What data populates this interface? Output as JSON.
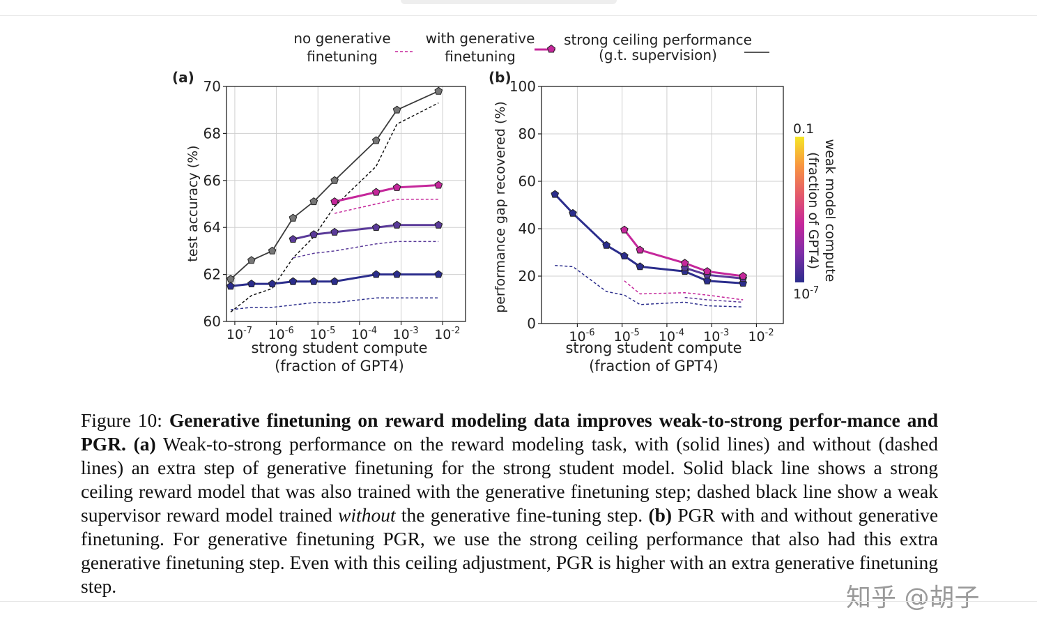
{
  "legend": {
    "no_gen_line1": "no generative",
    "no_gen_line2": "finetuning",
    "with_gen_line1": "with generative",
    "with_gen_line2": "finetuning",
    "ceiling_line1": "strong ceiling performance",
    "ceiling_line2": "(g.t. supervision)"
  },
  "colors": {
    "low": "#2b2d8c",
    "mid": "#5a3a99",
    "high": "#c5279b",
    "ceiling": "#3a3a3a",
    "weak": "#111111"
  },
  "chart_data": [
    {
      "panel": "a",
      "panel_label": "(a)",
      "type": "line",
      "xscale": "log",
      "xlabel_line1": "strong student compute",
      "xlabel_line2": "(fraction of GPT4)",
      "ylabel": "test accuracy (%)",
      "ylim": [
        60,
        70
      ],
      "yticks": [
        "60",
        "62",
        "64",
        "66",
        "68",
        "70"
      ],
      "xticks": [
        {
          "base": "10",
          "exp": "-7",
          "value": 1e-07
        },
        {
          "base": "10",
          "exp": "-6",
          "value": 1e-06
        },
        {
          "base": "10",
          "exp": "-5",
          "value": 1e-05
        },
        {
          "base": "10",
          "exp": "-4",
          "value": 0.0001
        },
        {
          "base": "10",
          "exp": "-3",
          "value": 0.001
        },
        {
          "base": "10",
          "exp": "-2",
          "value": 0.01
        }
      ],
      "xlim_log10": [
        -7.2,
        -1.45
      ],
      "series": [
        {
          "name": "strong ceiling performance (g.t. supervision)",
          "style": "solid",
          "color": "#3a3a3a",
          "markers": true,
          "weak_log10": null,
          "points": [
            [
              -7.1,
              61.8
            ],
            [
              -6.6,
              62.6
            ],
            [
              -6.1,
              63.0
            ],
            [
              -5.6,
              64.4
            ],
            [
              -5.1,
              65.1
            ],
            [
              -4.6,
              66.0
            ],
            [
              -3.6,
              67.7
            ],
            [
              -3.1,
              69.0
            ],
            [
              -2.1,
              69.8
            ]
          ]
        },
        {
          "name": "weak supervisor without generative finetuning",
          "style": "dashed",
          "color": "#111111",
          "markers": false,
          "weak_log10": null,
          "points": [
            [
              -7.1,
              60.4
            ],
            [
              -6.6,
              61.1
            ],
            [
              -6.1,
              61.4
            ],
            [
              -5.6,
              62.7
            ],
            [
              -5.1,
              63.6
            ],
            [
              -4.6,
              64.9
            ],
            [
              -3.6,
              66.6
            ],
            [
              -3.1,
              68.4
            ],
            [
              -2.1,
              69.3
            ]
          ]
        },
        {
          "name": "with generative finetuning",
          "style": "solid",
          "color": "#2b2d8c",
          "markers": true,
          "weak_log10": -7,
          "points": [
            [
              -7.1,
              61.5
            ],
            [
              -6.6,
              61.6
            ],
            [
              -6.1,
              61.6
            ],
            [
              -5.6,
              61.7
            ],
            [
              -5.1,
              61.7
            ],
            [
              -4.6,
              61.7
            ],
            [
              -3.6,
              62.0
            ],
            [
              -3.1,
              62.0
            ],
            [
              -2.1,
              62.0
            ]
          ]
        },
        {
          "name": "with generative finetuning",
          "style": "solid",
          "color": "#5a3a99",
          "markers": true,
          "weak_log10": -5,
          "points": [
            [
              -5.6,
              63.5
            ],
            [
              -5.1,
              63.7
            ],
            [
              -4.6,
              63.8
            ],
            [
              -3.6,
              64.0
            ],
            [
              -3.1,
              64.1
            ],
            [
              -2.1,
              64.1
            ]
          ]
        },
        {
          "name": "with generative finetuning",
          "style": "solid",
          "color": "#c5279b",
          "markers": true,
          "weak_log10": -1,
          "points": [
            [
              -4.6,
              65.1
            ],
            [
              -3.6,
              65.5
            ],
            [
              -3.1,
              65.7
            ],
            [
              -2.1,
              65.8
            ]
          ]
        },
        {
          "name": "no generative finetuning",
          "style": "dashed",
          "color": "#2b2d8c",
          "markers": false,
          "weak_log10": -7,
          "points": [
            [
              -7.1,
              60.5
            ],
            [
              -6.6,
              60.6
            ],
            [
              -6.1,
              60.6
            ],
            [
              -5.6,
              60.7
            ],
            [
              -5.1,
              60.8
            ],
            [
              -4.6,
              60.8
            ],
            [
              -3.6,
              61.0
            ],
            [
              -3.1,
              61.0
            ],
            [
              -2.1,
              61.0
            ]
          ]
        },
        {
          "name": "no generative finetuning",
          "style": "dashed",
          "color": "#5a3a99",
          "markers": false,
          "weak_log10": -5,
          "points": [
            [
              -5.6,
              62.7
            ],
            [
              -5.1,
              62.9
            ],
            [
              -4.6,
              63.0
            ],
            [
              -3.6,
              63.3
            ],
            [
              -3.1,
              63.4
            ],
            [
              -2.1,
              63.4
            ]
          ]
        },
        {
          "name": "no generative finetuning",
          "style": "dashed",
          "color": "#c5279b",
          "markers": false,
          "weak_log10": -1,
          "points": [
            [
              -4.6,
              64.6
            ],
            [
              -3.6,
              65.0
            ],
            [
              -3.1,
              65.2
            ],
            [
              -2.1,
              65.2
            ]
          ]
        }
      ]
    },
    {
      "panel": "b",
      "panel_label": "(b)",
      "type": "line",
      "xscale": "log",
      "xlabel_line1": "strong student compute",
      "xlabel_line2": "(fraction of GPT4)",
      "ylabel": "performance gap recovered (%)",
      "ylim": [
        0,
        100
      ],
      "yticks": [
        "0",
        "20",
        "40",
        "60",
        "80",
        "100"
      ],
      "xticks": [
        {
          "base": "10",
          "exp": "-6",
          "value": 1e-06
        },
        {
          "base": "10",
          "exp": "-5",
          "value": 1e-05
        },
        {
          "base": "10",
          "exp": "-4",
          "value": 0.0001
        },
        {
          "base": "10",
          "exp": "-3",
          "value": 0.001
        },
        {
          "base": "10",
          "exp": "-2",
          "value": 0.01
        }
      ],
      "xlim_log10": [
        -6.8,
        -1.4
      ],
      "series": [
        {
          "name": "with generative finetuning",
          "style": "solid",
          "color": "#2b2d8c",
          "markers": true,
          "weak_log10": -7,
          "points": [
            [
              -6.5,
              54.5
            ],
            [
              -6.1,
              46.5
            ],
            [
              -5.35,
              33.0
            ],
            [
              -4.95,
              28.5
            ],
            [
              -4.6,
              24.0
            ],
            [
              -3.6,
              22.0
            ],
            [
              -3.1,
              18.0
            ],
            [
              -2.3,
              17.0
            ]
          ]
        },
        {
          "name": "with generative finetuning",
          "style": "solid",
          "color": "#5a3a99",
          "markers": true,
          "weak_log10": -5,
          "points": [
            [
              -3.6,
              23.5
            ],
            [
              -3.1,
              20.5
            ],
            [
              -2.3,
              19.0
            ]
          ]
        },
        {
          "name": "with generative finetuning",
          "style": "solid",
          "color": "#c5279b",
          "markers": true,
          "weak_log10": -1,
          "points": [
            [
              -4.95,
              39.5
            ],
            [
              -4.6,
              31.0
            ],
            [
              -3.6,
              25.5
            ],
            [
              -3.1,
              22.0
            ],
            [
              -2.3,
              20.0
            ]
          ]
        },
        {
          "name": "no generative finetuning",
          "style": "dashed",
          "color": "#2b2d8c",
          "markers": false,
          "weak_log10": -7,
          "points": [
            [
              -6.5,
              24.5
            ],
            [
              -6.1,
              24.0
            ],
            [
              -5.35,
              13.5
            ],
            [
              -4.95,
              12.0
            ],
            [
              -4.6,
              8.0
            ],
            [
              -3.6,
              9.0
            ],
            [
              -3.1,
              7.5
            ],
            [
              -2.3,
              7.0
            ]
          ]
        },
        {
          "name": "no generative finetuning",
          "style": "dashed",
          "color": "#5a3a99",
          "markers": false,
          "weak_log10": -5,
          "points": [
            [
              -3.6,
              11.0
            ],
            [
              -3.1,
              10.0
            ],
            [
              -2.3,
              9.0
            ]
          ]
        },
        {
          "name": "no generative finetuning",
          "style": "dashed",
          "color": "#c5279b",
          "markers": false,
          "weak_log10": -1,
          "points": [
            [
              -4.95,
              18.0
            ],
            [
              -4.6,
              12.5
            ],
            [
              -3.6,
              13.0
            ],
            [
              -3.1,
              12.0
            ],
            [
              -2.3,
              10.0
            ]
          ]
        }
      ],
      "colorbar": {
        "label_line1": "weak model compute",
        "label_line2": "(fraction of GPT4)",
        "top_label": "0.1",
        "bottom_base": "10",
        "bottom_exp": "-7",
        "gradient": [
          "#f5e626",
          "#f89540",
          "#e45a6b",
          "#c5279b",
          "#7e2ea8",
          "#2b2d8c"
        ]
      }
    }
  ],
  "caption": {
    "fig_label": "Figure 10:",
    "bold_title": "Generative finetuning on reward modeling data improves weak-to-strong perfor-mance and PGR.",
    "a_label": "(a)",
    "a_text": "Weak-to-strong performance on the reward modeling task, with (solid lines) and without (dashed lines) an extra step of generative finetuning for the strong student model. Solid black line shows a strong ceiling reward model that was also trained with the generative finetuning step; dashed black line show a weak supervisor reward model trained",
    "a_italic": "without",
    "a_text2": "the generative fine-tuning step.",
    "b_label": "(b)",
    "b_text": "PGR with and without generative finetuning. For generative finetuning PGR, we use the strong ceiling performance that also had this extra generative finetuning step. Even with this ceiling adjustment, PGR is higher with an extra generative finetuning step."
  },
  "watermark": "知乎 @胡子"
}
